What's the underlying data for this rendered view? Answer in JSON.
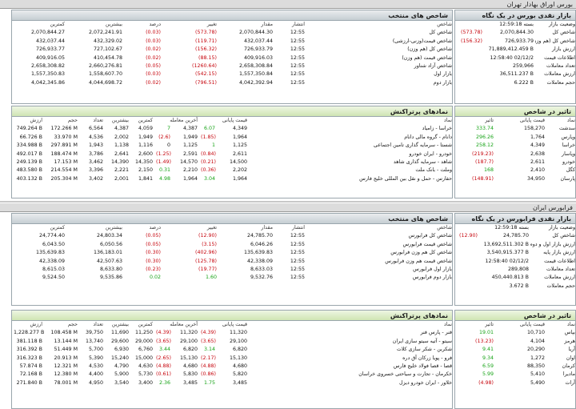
{
  "bourse": {
    "title": "بورس اوراق بهادار تهران",
    "market": {
      "title": "بازار نقدی بورس در یک نگاه",
      "rows": [
        [
          "وضعیت بازار",
          "بسته 12:59:18",
          ""
        ],
        [
          "شاخص کل",
          "2,070,844.30",
          "(573.78)"
        ],
        [
          "شاخص کل (هم وزن)",
          "726,933.79",
          "(156.32)"
        ],
        [
          "ارزش بازار",
          "71,889,412.459 B",
          ""
        ],
        [
          "اطلاعات قیمت",
          "12:58:40 02/12/2",
          ""
        ],
        [
          "تعداد معاملات",
          "259,966",
          ""
        ],
        [
          "ارزش معاملات",
          "36,511.237 B",
          ""
        ],
        [
          "حجم معاملات",
          "6.222 B",
          ""
        ]
      ]
    },
    "indices": {
      "title": "شاخص های منتخب",
      "headers": [
        "شاخص",
        "انتشار",
        "مقدار",
        "تغییر",
        "درصد",
        "بیشترین",
        "کمترین"
      ],
      "rows": [
        [
          "شاخص کل",
          "12:55",
          "2,070,844.30",
          "(573.78)",
          "(0.03)",
          "2,072,241.91",
          "2,070,844.27"
        ],
        [
          "شاخص قیمت(وزنی-ارزشی)",
          "12:55",
          "432,037.44",
          "(119.71)",
          "(0.03)",
          "432,329.02",
          "432,037.44"
        ],
        [
          "شاخص کل (هم وزن)",
          "12:55",
          "726,933.79",
          "(156.32)",
          "(0.02)",
          "727,102.67",
          "726,933.77"
        ],
        [
          "شاخص قیمت (هم وزن)",
          "12:55",
          "409,916.03",
          "(88.15)",
          "(0.02)",
          "410,454.78",
          "409,916.05"
        ],
        [
          "شاخص آزاد شناور",
          "12:55",
          "2,658,308.84",
          "(1260.64)",
          "(0.05)",
          "2,660,276.81",
          "2,658,308.82"
        ],
        [
          "بازار اول",
          "12:55",
          "1,557,350.84",
          "(542.15)",
          "(0.03)",
          "1,558,607.70",
          "1,557,350.83"
        ],
        [
          "بازار دوم",
          "12:55",
          "4,042,392.94",
          "(796.51)",
          "(0.02)",
          "4,044,698.72",
          "4,042,345.86"
        ]
      ]
    },
    "impact": {
      "title": "تاثیر در شاخص",
      "headers": [
        "نماد",
        "قیمت پایانی",
        "تاثیر"
      ],
      "rows": [
        [
          "سدشت",
          "158,270",
          "333.74"
        ],
        [
          "وپارس",
          "1,764",
          "296.26"
        ],
        [
          "خراسا",
          "4,349",
          "258.12"
        ],
        [
          "وپاسار",
          "2,638",
          "(219.23)"
        ],
        [
          "خودرو",
          "2,611",
          "(187.7)"
        ],
        [
          "کگل",
          "2,410",
          "168"
        ],
        [
          "پارسان",
          "34,950",
          "(148.91)"
        ]
      ]
    },
    "traded": {
      "title": "نمادهای پرتراکنش",
      "headers": [
        "نماد",
        "قیمت پایانی",
        "آخرین معامله",
        "کمترین",
        "بیشترین",
        "تعداد",
        "حجم",
        "ارزش"
      ],
      "rows": [
        [
          "خراسا - زامیاد",
          "4,349",
          "6.07",
          "4,387",
          "7",
          "4,059",
          "4,387",
          "6,564",
          "172.266 M",
          "749.264 B"
        ],
        [
          "دانام - گروه مالی دانام",
          "1,964",
          "(1.85)",
          "1,949",
          "(2.6)",
          "1,949",
          "2,002",
          "4,536",
          "33.970 M",
          "66.726 B"
        ],
        [
          "شستا - سرمایه گذاری تامین اجتماعی",
          "1,125",
          "1",
          "1,125",
          "0",
          "1,116",
          "1,138",
          "1,943",
          "297.891 M",
          "334.988 B"
        ],
        [
          "خودرو - ایران خودرو",
          "2,611",
          "(0.84)",
          "2,591",
          "(1.25)",
          "2,600",
          "2,641",
          "3,786",
          "188.474 M",
          "492.017 B"
        ],
        [
          "شاهد - سرمایه گذاری شاهد",
          "14,500",
          "(0.21)",
          "14,570",
          "(1.49)",
          "14,350",
          "14,390",
          "3,462",
          "17.153 M",
          "249.139 B"
        ],
        [
          "وملت - بانک ملت",
          "2,202",
          "(0.36)",
          "2,210",
          "0.31",
          "2,150",
          "2,221",
          "3,396",
          "214.554 M",
          "483.580 B"
        ],
        [
          "حفارس - حمل و نقل بین المللی خلیج فارس",
          "1,964",
          "3.04",
          "1,964",
          "4.98",
          "1,841",
          "2,001",
          "3,402",
          "205.304 M",
          "403.132 B"
        ]
      ]
    }
  },
  "farabourse": {
    "title": "فرابورس ایران",
    "market": {
      "title": "بازار نقدی فرابورس در یک نگاه",
      "rows": [
        [
          "وضعیت بازار",
          "بسته 12:59:18",
          ""
        ],
        [
          "شاخص کل",
          "24,785.70",
          "(12.90)"
        ],
        [
          "ارزش بازار اول و دوم",
          "13,692,511.302 B",
          ""
        ],
        [
          "ارزش بازار پایه",
          "3,540,915.377 B",
          ""
        ],
        [
          "اطلاعات قیمت",
          "12:58:40 02/12/2",
          ""
        ],
        [
          "تعداد معاملات",
          "289,808",
          ""
        ],
        [
          "ارزش معاملات",
          "450,440.813 B",
          ""
        ],
        [
          "حجم معاملات",
          "3.672 B",
          ""
        ]
      ]
    },
    "indices": {
      "title": "شاخص های منتخب",
      "headers": [
        "شاخص",
        "انتشار",
        "مقدار",
        "تغییر",
        "درصد",
        "بیشترین",
        "کمترین"
      ],
      "rows": [
        [
          "شاخص کل فرابورس",
          "12:55",
          "24,785.70",
          "(12.90)",
          "(0.05)",
          "24,803.34",
          "24,774.40"
        ],
        [
          "شاخص قیمت فرابورس",
          "12:55",
          "6,046.26",
          "(3.15)",
          "(0.05)",
          "6,050.56",
          "6,043.50"
        ],
        [
          "شاخص کل هم وزن فرابورس",
          "12:55",
          "135,639.83",
          "(402.96)",
          "(0.30)",
          "136,183.01",
          "135,639.83"
        ],
        [
          "شاخص قیمت هم وزن فرابورس",
          "12:55",
          "42,338.09",
          "(125.78)",
          "(0.30)",
          "42,507.63",
          "42,338.09"
        ],
        [
          "بازار اول فرابورس",
          "12:55",
          "8,633.03",
          "(19.77)",
          "(0.23)",
          "8,633.80",
          "8,615.03"
        ],
        [
          "بازار دوم فرابورس",
          "12:55",
          "9,532.76",
          "1.60",
          "0.02",
          "9,535.86",
          "9,524.50"
        ]
      ]
    },
    "impact": {
      "title": "تاثیر در شاخص",
      "headers": [
        "نماد",
        "قیمت پایانی",
        "تاثیر"
      ],
      "rows": [
        [
          "بپاس",
          "10,710",
          "19.01"
        ],
        [
          "هرمز",
          "4,104",
          "(13.23)"
        ],
        [
          "آریا",
          "20,290",
          "9.41"
        ],
        [
          "اوان",
          "1,272",
          "9.34"
        ],
        [
          "کرمان",
          "88,350",
          "6.59"
        ],
        [
          "مادیرا",
          "5,410",
          "5.99"
        ],
        [
          "آرات",
          "5,490",
          "(4.98)"
        ]
      ]
    },
    "traded": {
      "title": "نمادهای پرتراکنش",
      "headers": [
        "نماد",
        "قیمت پایانی",
        "آخرین معامله",
        "کمترین",
        "بیشترین",
        "تعداد",
        "حجم",
        "ارزش"
      ],
      "rows": [
        [
          "فنر - پارس فنر",
          "11,320",
          "(4.39)",
          "11,320",
          "(4.39)",
          "11,250",
          "11,690",
          "39,750",
          "108.458 M",
          "1,228.277 B"
        ],
        [
          "سیتو - آتیه سیتو سازی ایران",
          "29,100",
          "(3.65)",
          "29,100",
          "(3.65)",
          "29,000",
          "29,600",
          "13,740",
          "13.144 M",
          "381.118 B"
        ],
        [
          "شکربن - شکر سازی کلات",
          "6,820",
          "3.14",
          "6,820",
          "3.44",
          "6,760",
          "6,930",
          "5,700",
          "51.449 M",
          "316.392 B"
        ],
        [
          "فرو - پویا زرکان آق دره",
          "15,130",
          "(2.17)",
          "15,130",
          "(2.65)",
          "15,000",
          "15,240",
          "5,390",
          "20.913 M",
          "316.323 B"
        ],
        [
          "قصا - قصا فولاد خلیج فارس",
          "4,680",
          "(4.88)",
          "4,680",
          "(4.88)",
          "4,630",
          "4,790",
          "4,530",
          "12.321 M",
          "57.874 B"
        ],
        [
          "خکرمان - تجارت و سیاحتی خسروی خراسان",
          "5,820",
          "(0.86)",
          "5,830",
          "(0.61)",
          "5,730",
          "5,900",
          "4,400",
          "12.380 M",
          "72.168 B"
        ],
        [
          "خلاور - ایران خودرو دیزل",
          "3,485",
          "1.75",
          "3,485",
          "2.36",
          "3,400",
          "3,540",
          "4,950",
          "78.001 M",
          "271.840 B"
        ]
      ]
    }
  }
}
